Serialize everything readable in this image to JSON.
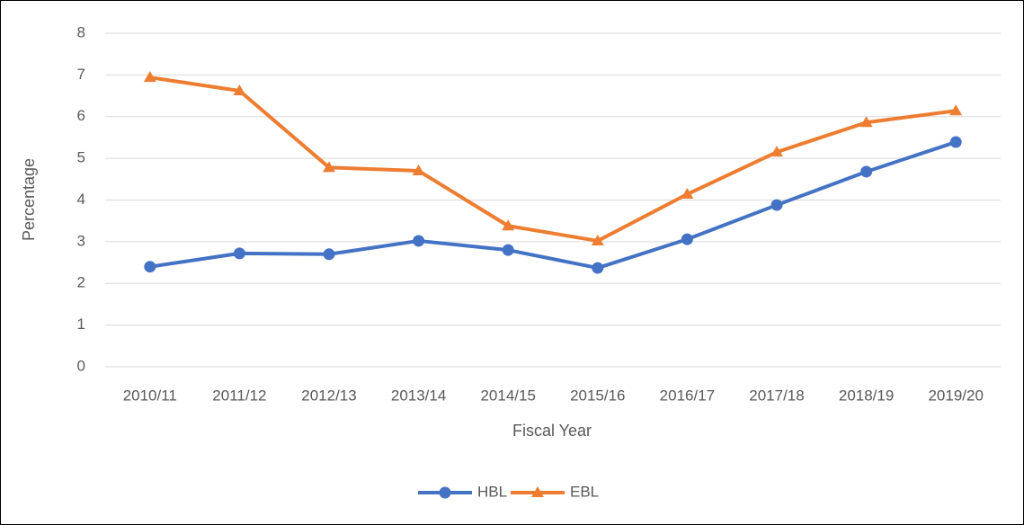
{
  "chart_data": {
    "type": "line",
    "x_label": "Fiscal Year",
    "y_label": "Percentage",
    "categories": [
      "2010/11",
      "2011/12",
      "2012/13",
      "2013/14",
      "2014/15",
      "2015/16",
      "2016/17",
      "2017/18",
      "2018/19",
      "2019/20"
    ],
    "series": [
      {
        "name": "HBL",
        "color": "#4472c4",
        "marker": "circle",
        "values": [
          2.4,
          2.72,
          2.7,
          3.02,
          2.8,
          2.37,
          3.06,
          3.88,
          4.68,
          5.39
        ]
      },
      {
        "name": "EBL",
        "color": "#ed7d31",
        "marker": "triangle",
        "values": [
          6.94,
          6.62,
          4.78,
          4.7,
          3.38,
          3.02,
          4.14,
          5.15,
          5.86,
          6.14
        ]
      }
    ],
    "ylim": [
      0,
      8
    ],
    "yticks": [
      0,
      1,
      2,
      3,
      4,
      5,
      6,
      7,
      8
    ],
    "grid": true,
    "legend": "bottom"
  }
}
